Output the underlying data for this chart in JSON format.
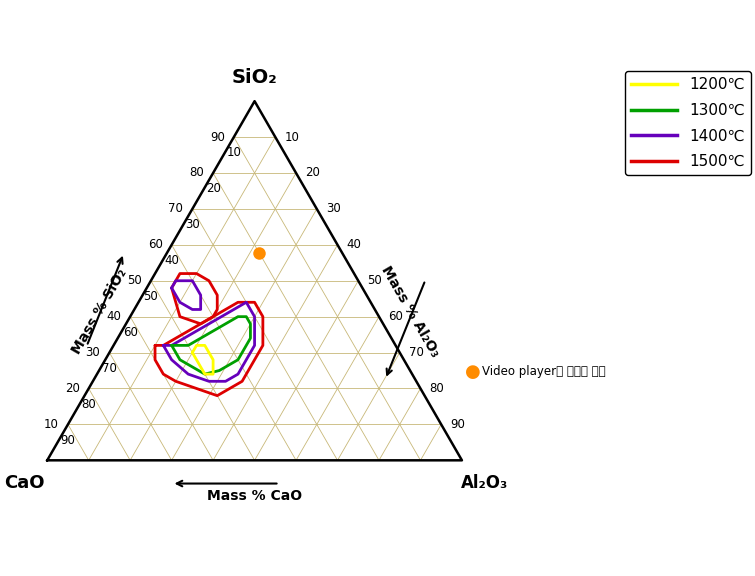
{
  "title_sio2": "SiO₂",
  "title_cao": "CaO",
  "title_al2o3": "Al₂O₃",
  "xlabel": "Mass % CaO",
  "ylabel_sio2": "Mass % SiO₂",
  "ylabel_al2o3": "Mass % Al₂O₃",
  "legend_labels": [
    "1200℃",
    "1300℃",
    "1400℃",
    "1500℃"
  ],
  "legend_colors": [
    "#ffff00",
    "#00a000",
    "#6600bb",
    "#dd0000"
  ],
  "point_cao": 20.1,
  "point_al2o3": 22.3,
  "point_sio2": 57.8,
  "point_color": "#ff8c00",
  "point_label": "Video player의 슬래그 용점",
  "grid_color": "#c8b878",
  "background_color": "#ffffff",
  "line_width": 2.0,
  "c1500_main": {
    "cao": [
      58,
      56,
      52,
      48,
      44,
      40,
      36,
      32,
      30,
      28,
      28,
      30,
      32,
      36,
      38,
      40,
      42,
      44,
      46,
      50,
      54,
      58,
      60,
      60,
      58
    ],
    "al2o3": [
      10,
      12,
      14,
      16,
      18,
      20,
      22,
      24,
      26,
      28,
      32,
      34,
      36,
      36,
      36,
      36,
      36,
      35,
      34,
      32,
      26,
      20,
      16,
      12,
      10
    ]
  },
  "c1500_lower": {
    "cao": [
      46,
      44,
      42,
      40,
      38,
      36,
      36,
      38,
      40,
      44,
      48,
      46
    ],
    "al2o3": [
      6,
      6,
      6,
      8,
      10,
      14,
      18,
      20,
      20,
      18,
      12,
      6
    ]
  },
  "c1400_main": {
    "cao": [
      56,
      54,
      50,
      46,
      42,
      38,
      34,
      30,
      30,
      32,
      34,
      36,
      38,
      40,
      42,
      44,
      46,
      50,
      54,
      56,
      56
    ],
    "al2o3": [
      12,
      14,
      16,
      18,
      20,
      22,
      24,
      26,
      30,
      32,
      34,
      34,
      34,
      34,
      34,
      33,
      32,
      28,
      22,
      16,
      12
    ]
  },
  "c1400_lower": {
    "cao": [
      46,
      44,
      42,
      40,
      40,
      42,
      44,
      46,
      46
    ],
    "al2o3": [
      6,
      6,
      8,
      10,
      14,
      16,
      14,
      10,
      6
    ]
  },
  "c1300_main": {
    "cao": [
      54,
      52,
      50,
      46,
      42,
      38,
      34,
      32,
      32,
      34,
      36,
      38,
      40,
      42,
      44,
      46,
      50,
      52,
      54,
      54
    ],
    "al2o3": [
      14,
      16,
      18,
      20,
      22,
      24,
      26,
      28,
      30,
      32,
      32,
      32,
      32,
      31,
      30,
      29,
      26,
      22,
      18,
      14
    ]
  },
  "c1200_main": {
    "cao": [
      50,
      48,
      46,
      46,
      48,
      50,
      50
    ],
    "al2o3": [
      20,
      20,
      22,
      26,
      28,
      26,
      20
    ]
  }
}
